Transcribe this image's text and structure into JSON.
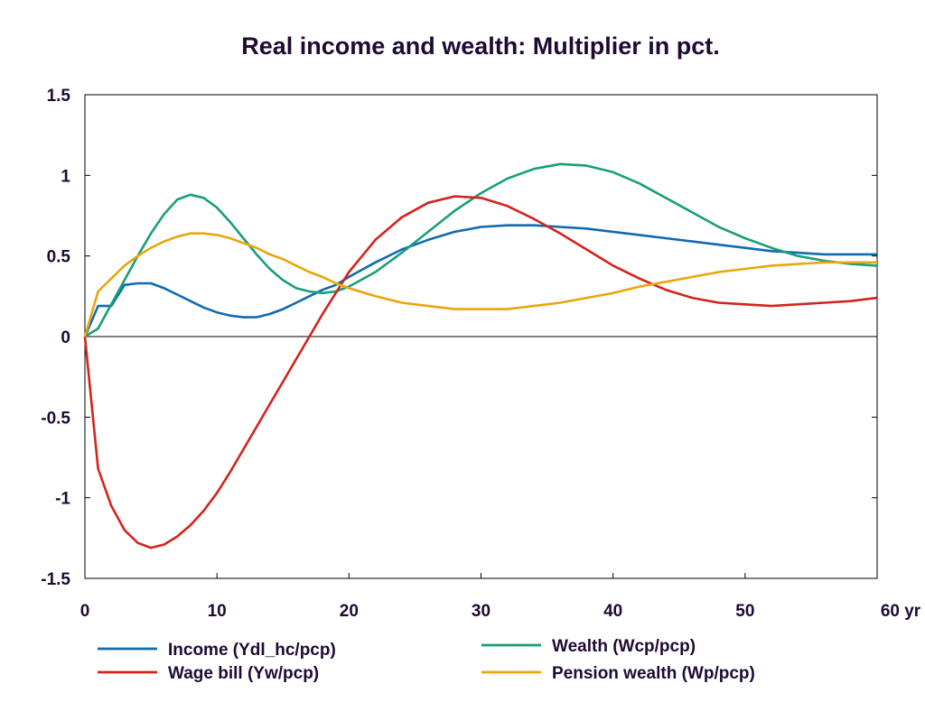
{
  "chart_data": {
    "type": "line",
    "title": "Real income and wealth: Multiplier in pct.",
    "xlabel": "",
    "ylabel": "",
    "xlim": [
      0,
      60
    ],
    "ylim": [
      -1.5,
      1.5
    ],
    "x_ticks": [
      "0",
      "10",
      "20",
      "30",
      "40",
      "50",
      "60 yr"
    ],
    "x_tick_values": [
      0,
      10,
      20,
      30,
      40,
      50,
      60
    ],
    "y_ticks": [
      "1.5",
      "1",
      "0.5",
      "0",
      "-0.5",
      "-1",
      "-1.5"
    ],
    "y_tick_values": [
      1.5,
      1,
      0.5,
      0,
      -0.5,
      -1,
      -1.5
    ],
    "grid": false,
    "zero_line": true,
    "legend_position": "bottom",
    "series": [
      {
        "name": "Income (Ydl_hc/pcp)",
        "color": "#0f6bb0",
        "x": [
          0,
          1,
          2,
          3,
          4,
          5,
          6,
          7,
          8,
          9,
          10,
          11,
          12,
          13,
          14,
          15,
          16,
          17,
          18,
          19,
          20,
          22,
          24,
          26,
          28,
          30,
          32,
          34,
          36,
          38,
          40,
          42,
          44,
          46,
          48,
          50,
          52,
          54,
          56,
          58,
          60
        ],
        "y": [
          0,
          0.19,
          0.19,
          0.32,
          0.33,
          0.33,
          0.3,
          0.26,
          0.22,
          0.18,
          0.15,
          0.13,
          0.12,
          0.12,
          0.14,
          0.17,
          0.21,
          0.25,
          0.29,
          0.32,
          0.37,
          0.46,
          0.54,
          0.6,
          0.65,
          0.68,
          0.69,
          0.69,
          0.68,
          0.67,
          0.65,
          0.63,
          0.61,
          0.59,
          0.57,
          0.55,
          0.53,
          0.52,
          0.51,
          0.51,
          0.51
        ]
      },
      {
        "name": "Wealth (Wcp/pcp)",
        "color": "#1a9e7a",
        "x": [
          0,
          1,
          2,
          3,
          4,
          5,
          6,
          7,
          8,
          9,
          10,
          11,
          12,
          13,
          14,
          15,
          16,
          17,
          18,
          19,
          20,
          22,
          24,
          26,
          28,
          30,
          32,
          34,
          36,
          38,
          40,
          42,
          44,
          46,
          48,
          50,
          52,
          54,
          56,
          58,
          60
        ],
        "y": [
          0,
          0.05,
          0.2,
          0.35,
          0.5,
          0.64,
          0.76,
          0.85,
          0.88,
          0.86,
          0.8,
          0.71,
          0.61,
          0.51,
          0.42,
          0.35,
          0.3,
          0.28,
          0.27,
          0.28,
          0.31,
          0.4,
          0.52,
          0.65,
          0.78,
          0.89,
          0.98,
          1.04,
          1.07,
          1.06,
          1.02,
          0.95,
          0.86,
          0.77,
          0.68,
          0.61,
          0.55,
          0.5,
          0.47,
          0.45,
          0.44
        ]
      },
      {
        "name": "Wage bill (Yw/pcp)",
        "color": "#d4231c",
        "x": [
          0,
          1,
          2,
          3,
          4,
          5,
          6,
          7,
          8,
          9,
          10,
          11,
          12,
          13,
          14,
          15,
          16,
          17,
          18,
          19,
          20,
          22,
          24,
          26,
          28,
          30,
          32,
          34,
          36,
          38,
          40,
          42,
          44,
          46,
          48,
          50,
          52,
          54,
          56,
          58,
          60
        ],
        "y": [
          0,
          -0.82,
          -1.05,
          -1.2,
          -1.28,
          -1.31,
          -1.29,
          -1.24,
          -1.17,
          -1.08,
          -0.97,
          -0.84,
          -0.7,
          -0.56,
          -0.42,
          -0.28,
          -0.14,
          0.0,
          0.14,
          0.27,
          0.4,
          0.6,
          0.74,
          0.83,
          0.87,
          0.86,
          0.81,
          0.73,
          0.64,
          0.54,
          0.44,
          0.36,
          0.29,
          0.24,
          0.21,
          0.2,
          0.19,
          0.2,
          0.21,
          0.22,
          0.24
        ]
      },
      {
        "name": "Pension wealth (Wp/pcp)",
        "color": "#e8a60d",
        "x": [
          0,
          1,
          2,
          3,
          4,
          5,
          6,
          7,
          8,
          9,
          10,
          11,
          12,
          13,
          14,
          15,
          16,
          17,
          18,
          19,
          20,
          22,
          24,
          26,
          28,
          30,
          32,
          34,
          36,
          38,
          40,
          42,
          44,
          46,
          48,
          50,
          52,
          54,
          56,
          58,
          60
        ],
        "y": [
          0,
          0.28,
          0.36,
          0.44,
          0.5,
          0.55,
          0.59,
          0.62,
          0.64,
          0.64,
          0.63,
          0.61,
          0.58,
          0.55,
          0.51,
          0.48,
          0.44,
          0.4,
          0.37,
          0.33,
          0.3,
          0.25,
          0.21,
          0.19,
          0.17,
          0.17,
          0.17,
          0.19,
          0.21,
          0.24,
          0.27,
          0.31,
          0.34,
          0.37,
          0.4,
          0.42,
          0.44,
          0.45,
          0.46,
          0.46,
          0.46
        ]
      }
    ]
  }
}
